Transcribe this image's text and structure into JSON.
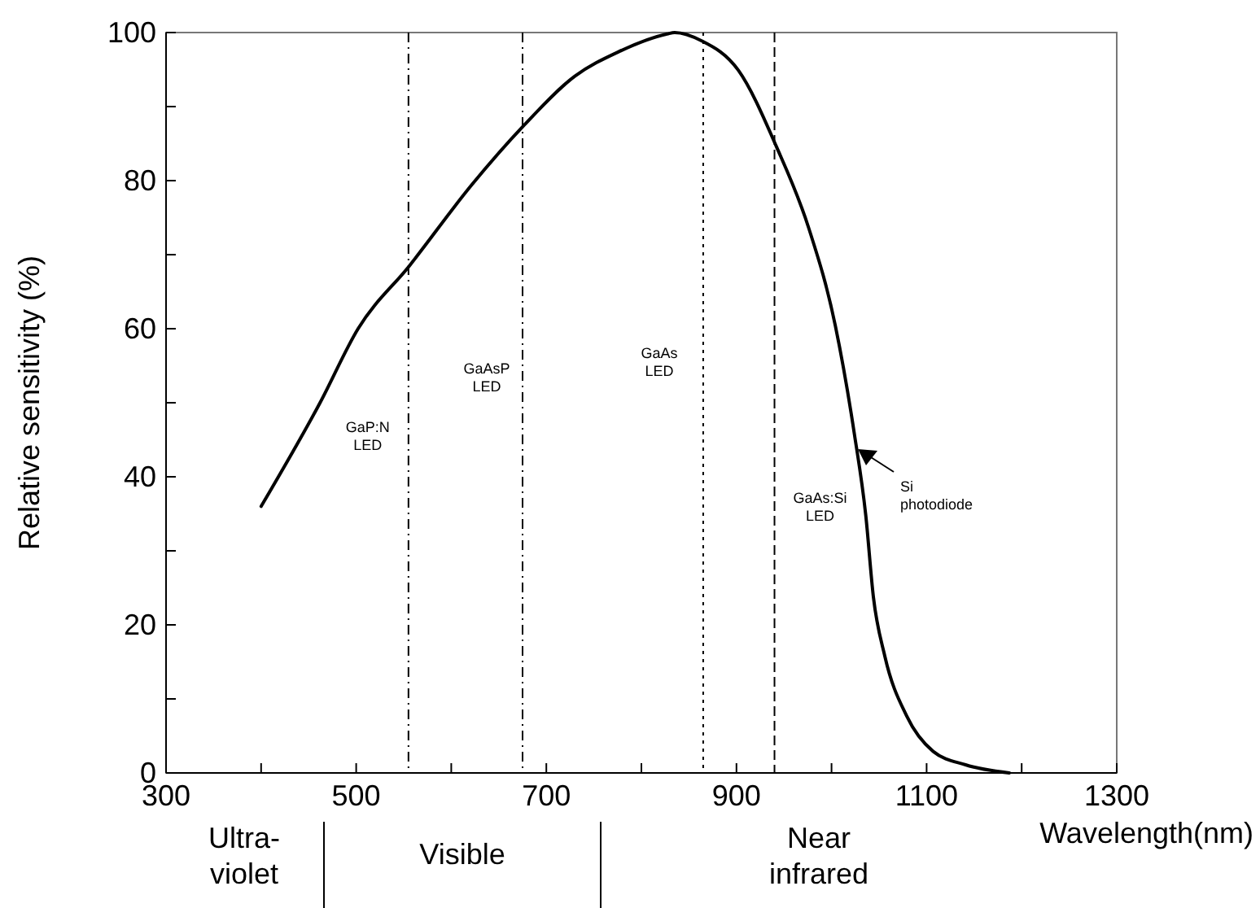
{
  "chart_data": {
    "type": "line",
    "xlabel": "Wavelength(nm)",
    "ylabel": "Relative sensitivity (%)",
    "x": [
      400,
      462,
      502,
      556,
      622,
      676,
      730,
      776,
      827,
      835,
      863,
      902,
      942,
      976,
      1004,
      1024,
      1036,
      1044,
      1056,
      1079,
      1107,
      1141,
      1187
    ],
    "values": [
      36,
      50,
      60,
      68.5,
      79.5,
      87.4,
      94.1,
      97.4,
      99.8,
      100,
      98.9,
      94.9,
      84.6,
      73.6,
      60.4,
      45.8,
      34.8,
      23.8,
      15.8,
      7.7,
      2.9,
      1.1,
      0
    ],
    "color": "#000000",
    "marker": "none",
    "line_style": "solid",
    "grid": false,
    "xlim": [
      300,
      1300
    ],
    "xticks": [
      300,
      {
        "value": 400,
        "label": null
      },
      500,
      {
        "value": 600,
        "label": null
      },
      700,
      {
        "value": 800,
        "label": null
      },
      900,
      {
        "value": 1000,
        "label": null
      },
      1100,
      {
        "value": 1200,
        "label": null
      },
      1300
    ],
    "ylim": [
      0,
      100
    ],
    "yticks": [
      0,
      {
        "value": 10,
        "label": null
      },
      20,
      {
        "value": 30,
        "label": null
      },
      40,
      {
        "value": 50,
        "label": null
      },
      60,
      {
        "value": 70,
        "label": null
      },
      80,
      {
        "value": 90,
        "label": null
      },
      100
    ],
    "ref_lines": [
      {
        "axis": "x",
        "value": 555,
        "line_style": "dashdot",
        "label": "GaP:N LED"
      },
      {
        "axis": "x",
        "value": 675,
        "line_style": "dashdot",
        "label": "GaAsP LED"
      },
      {
        "axis": "x",
        "value": 865,
        "line_style": "dotted",
        "label": "GaAs LED"
      },
      {
        "axis": "x",
        "value": 940,
        "line_style": "dashed",
        "label": "GaAs:Si LED"
      }
    ],
    "annotations": [
      "Si photodiode",
      "Ultra-violet",
      "Visible",
      "Near infrared"
    ]
  }
}
